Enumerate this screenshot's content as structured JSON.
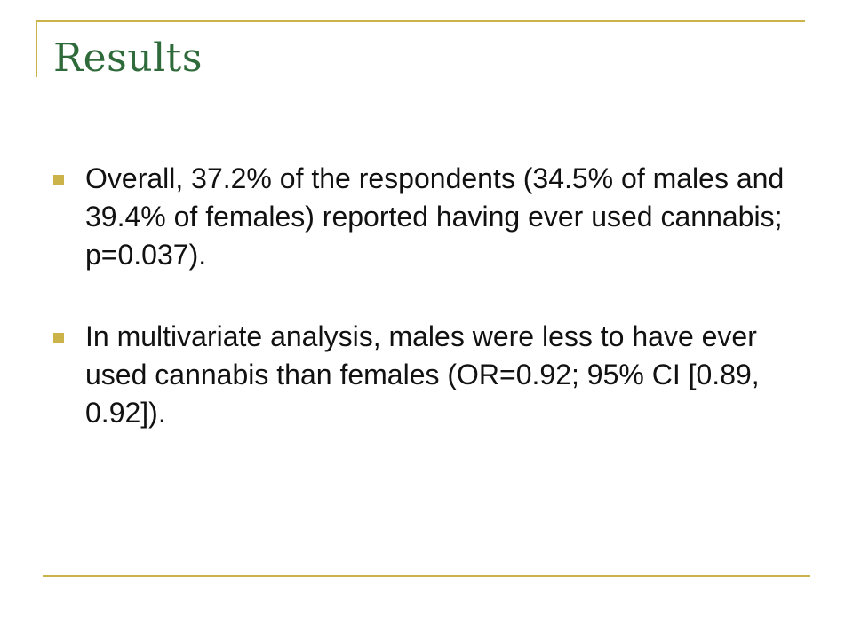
{
  "slide": {
    "title": "Results",
    "bullets": [
      {
        "text": "Overall, 37.2% of the respondents (34.5% of males and 39.4% of females) reported having ever used cannabis; p=0.037)."
      },
      {
        "text": "In multivariate analysis, males were less to have ever used cannabis than females (OR=0.92; 95% CI [0.89, 0.92])."
      }
    ]
  },
  "colors": {
    "accent_rule": "#cbb34a",
    "title_text": "#2f6b3a",
    "body_text": "#111111",
    "background": "#ffffff"
  },
  "icons": {
    "bullet": "square-bullet-icon"
  }
}
